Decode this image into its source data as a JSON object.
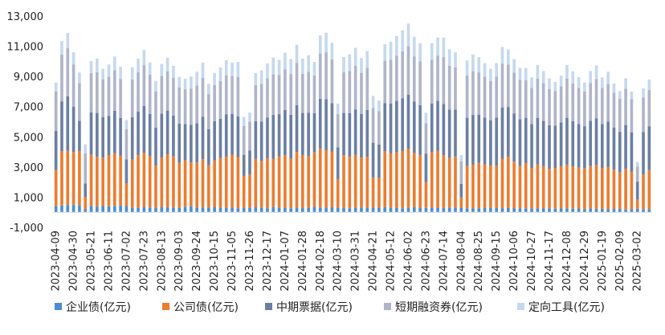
{
  "chart_data": {
    "type": "bar",
    "stacked": true,
    "x_tick_labels": [
      "2023-04-09",
      "2023-04-30",
      "2023-05-21",
      "2023-06-11",
      "2023-07-02",
      "2023-07-23",
      "2023-08-13",
      "2023-09-03",
      "2023-09-24",
      "2023-10-15",
      "2023-11-05",
      "2023-11-26",
      "2023-12-17",
      "2024-01-07",
      "2024-01-28",
      "2024-02-18",
      "2024-03-10",
      "2024-03-31",
      "2024-04-21",
      "2024-05-12",
      "2024-06-02",
      "2024-06-23",
      "2024-07-14",
      "2024-08-04",
      "2024-08-25",
      "2024-09-15",
      "2024-10-06",
      "2024-10-27",
      "2024-11-17",
      "2024-12-08",
      "2024-12-29",
      "2025-01-19",
      "2025-02-09",
      "2025-03-02"
    ],
    "bars_per_tick": 3,
    "yticks": [
      -1000,
      1000,
      3000,
      5000,
      7000,
      9000,
      11000,
      13000
    ],
    "ytick_labels": [
      "-1,000",
      "1,000",
      "3,000",
      "5,000",
      "7,000",
      "9,000",
      "11,000",
      "13,000"
    ],
    "ylim": [
      -1000,
      13000
    ],
    "legend_position": "bottom",
    "colors": {
      "enterprise": "#4a8fd4",
      "company": "#ec7c30",
      "mtn": "#6b7fa3",
      "cp": "#b0b4c8",
      "ppn": "#c5d9ee"
    },
    "series": [
      {
        "key": "enterprise",
        "name": "企业债(亿元)",
        "values": [
          400,
          450,
          480,
          500,
          460,
          200,
          420,
          380,
          410,
          390,
          420,
          440,
          410,
          300,
          280,
          350,
          320,
          300,
          330,
          340,
          300,
          280,
          350,
          400,
          300,
          320,
          310,
          330,
          300,
          280,
          320,
          260,
          310,
          300,
          330,
          300,
          270,
          350,
          300,
          280,
          260,
          300,
          280,
          300,
          360,
          320,
          300,
          330,
          300,
          280,
          270,
          300,
          320,
          280,
          310,
          300,
          340,
          300,
          280,
          260,
          300,
          330,
          300,
          290,
          300,
          280,
          280,
          300,
          300,
          280,
          260,
          250,
          270,
          280,
          300,
          280,
          250,
          280,
          250,
          270,
          260,
          240,
          260,
          250,
          270,
          240,
          250,
          260,
          240,
          250,
          200,
          260,
          230,
          240,
          200,
          220,
          230,
          180,
          200,
          230,
          210,
          200
        ]
      },
      {
        "key": "company",
        "name": "公司债(亿元)",
        "values": [
          2400,
          3600,
          3600,
          3500,
          3600,
          800,
          3400,
          3300,
          3200,
          3400,
          3500,
          3300,
          1500,
          3200,
          3500,
          3600,
          3400,
          2800,
          3300,
          3500,
          3400,
          3000,
          3100,
          2900,
          3000,
          3200,
          2800,
          3100,
          3300,
          3400,
          3500,
          3400,
          2100,
          2200,
          3200,
          3100,
          3300,
          3200,
          3400,
          3500,
          3300,
          3700,
          3500,
          3400,
          3600,
          3900,
          3800,
          3700,
          1900,
          3500,
          3400,
          3500,
          3300,
          3400,
          2000,
          2000,
          3700,
          3600,
          3700,
          3800,
          3900,
          3600,
          3500,
          1700,
          3700,
          3800,
          3500,
          3300,
          3400,
          700,
          2800,
          2900,
          3000,
          2900,
          2800,
          2800,
          3300,
          3400,
          3100,
          2800,
          3000,
          2700,
          2900,
          2800,
          2600,
          2700,
          2800,
          2900,
          2800,
          2700,
          2700,
          2800,
          2900,
          2700,
          2800,
          2600,
          2400,
          2700,
          2500,
          600,
          2300,
          2600
        ]
      },
      {
        "key": "mtn",
        "name": "中期票据(亿元)",
        "values": [
          2600,
          3300,
          3600,
          3000,
          2000,
          900,
          2800,
          2900,
          2700,
          2600,
          2800,
          2500,
          1600,
          2800,
          2900,
          3100,
          2800,
          2500,
          2900,
          2900,
          2700,
          2600,
          2400,
          2500,
          2600,
          2800,
          2400,
          2600,
          2600,
          2800,
          2700,
          2700,
          1400,
          1600,
          2500,
          2600,
          2700,
          2900,
          2800,
          3000,
          2900,
          3100,
          2800,
          2900,
          2600,
          3300,
          3400,
          3200,
          2100,
          2800,
          2900,
          3000,
          2900,
          3100,
          2300,
          2200,
          3200,
          3300,
          3400,
          3500,
          3600,
          3400,
          3300,
          1900,
          3200,
          3300,
          3400,
          3200,
          3100,
          900,
          3200,
          3300,
          3200,
          3100,
          3000,
          3200,
          3400,
          3300,
          3200,
          3100,
          3000,
          2900,
          3100,
          3000,
          2900,
          2800,
          2900,
          3100,
          3000,
          2900,
          2800,
          3000,
          3100,
          2900,
          3000,
          2800,
          2700,
          2900,
          2600,
          1200,
          2800,
          2900
        ]
      },
      {
        "key": "cp",
        "name": "短期融资券(亿元)",
        "values": [
          2600,
          3100,
          3200,
          2800,
          2500,
          2000,
          2600,
          2700,
          2500,
          2600,
          2700,
          2600,
          2000,
          2500,
          2600,
          2700,
          2600,
          2400,
          2500,
          2600,
          2500,
          2400,
          2300,
          2400,
          2500,
          2600,
          2300,
          2400,
          2500,
          2600,
          2500,
          2600,
          1900,
          1900,
          2400,
          2500,
          2600,
          2700,
          2600,
          2700,
          2700,
          2800,
          2600,
          2700,
          2500,
          3000,
          3100,
          2900,
          2200,
          2700,
          2800,
          2900,
          2700,
          2800,
          2300,
          2200,
          2800,
          2900,
          3000,
          3100,
          3200,
          3000,
          2900,
          2000,
          2900,
          3000,
          3100,
          2900,
          2800,
          1500,
          2800,
          2900,
          2800,
          2700,
          2600,
          2700,
          2900,
          2800,
          2700,
          2600,
          2500,
          2400,
          2600,
          2500,
          2400,
          2300,
          2400,
          2600,
          2500,
          2400,
          2300,
          2500,
          2600,
          2400,
          2500,
          2300,
          2200,
          2400,
          2200,
          1000,
          2300,
          2400
        ]
      },
      {
        "key": "ppn",
        "name": "定向工具(亿元)",
        "values": [
          600,
          900,
          1000,
          800,
          700,
          600,
          800,
          900,
          700,
          800,
          900,
          800,
          600,
          800,
          900,
          1000,
          800,
          700,
          800,
          900,
          800,
          700,
          700,
          800,
          900,
          1000,
          700,
          800,
          900,
          1000,
          900,
          1000,
          600,
          600,
          800,
          900,
          1000,
          1100,
          1000,
          1100,
          1000,
          1200,
          1000,
          1100,
          900,
          1200,
          1300,
          1100,
          700,
          1000,
          1100,
          1200,
          1000,
          1100,
          800,
          700,
          1100,
          1200,
          1300,
          1400,
          1500,
          1300,
          1200,
          700,
          1100,
          1200,
          1300,
          1100,
          1000,
          400,
          1000,
          1100,
          1000,
          900,
          800,
          900,
          1100,
          1000,
          900,
          800,
          800,
          700,
          900,
          800,
          700,
          600,
          700,
          900,
          800,
          700,
          600,
          800,
          900,
          700,
          800,
          600,
          500,
          700,
          500,
          300,
          600,
          700
        ]
      }
    ]
  }
}
